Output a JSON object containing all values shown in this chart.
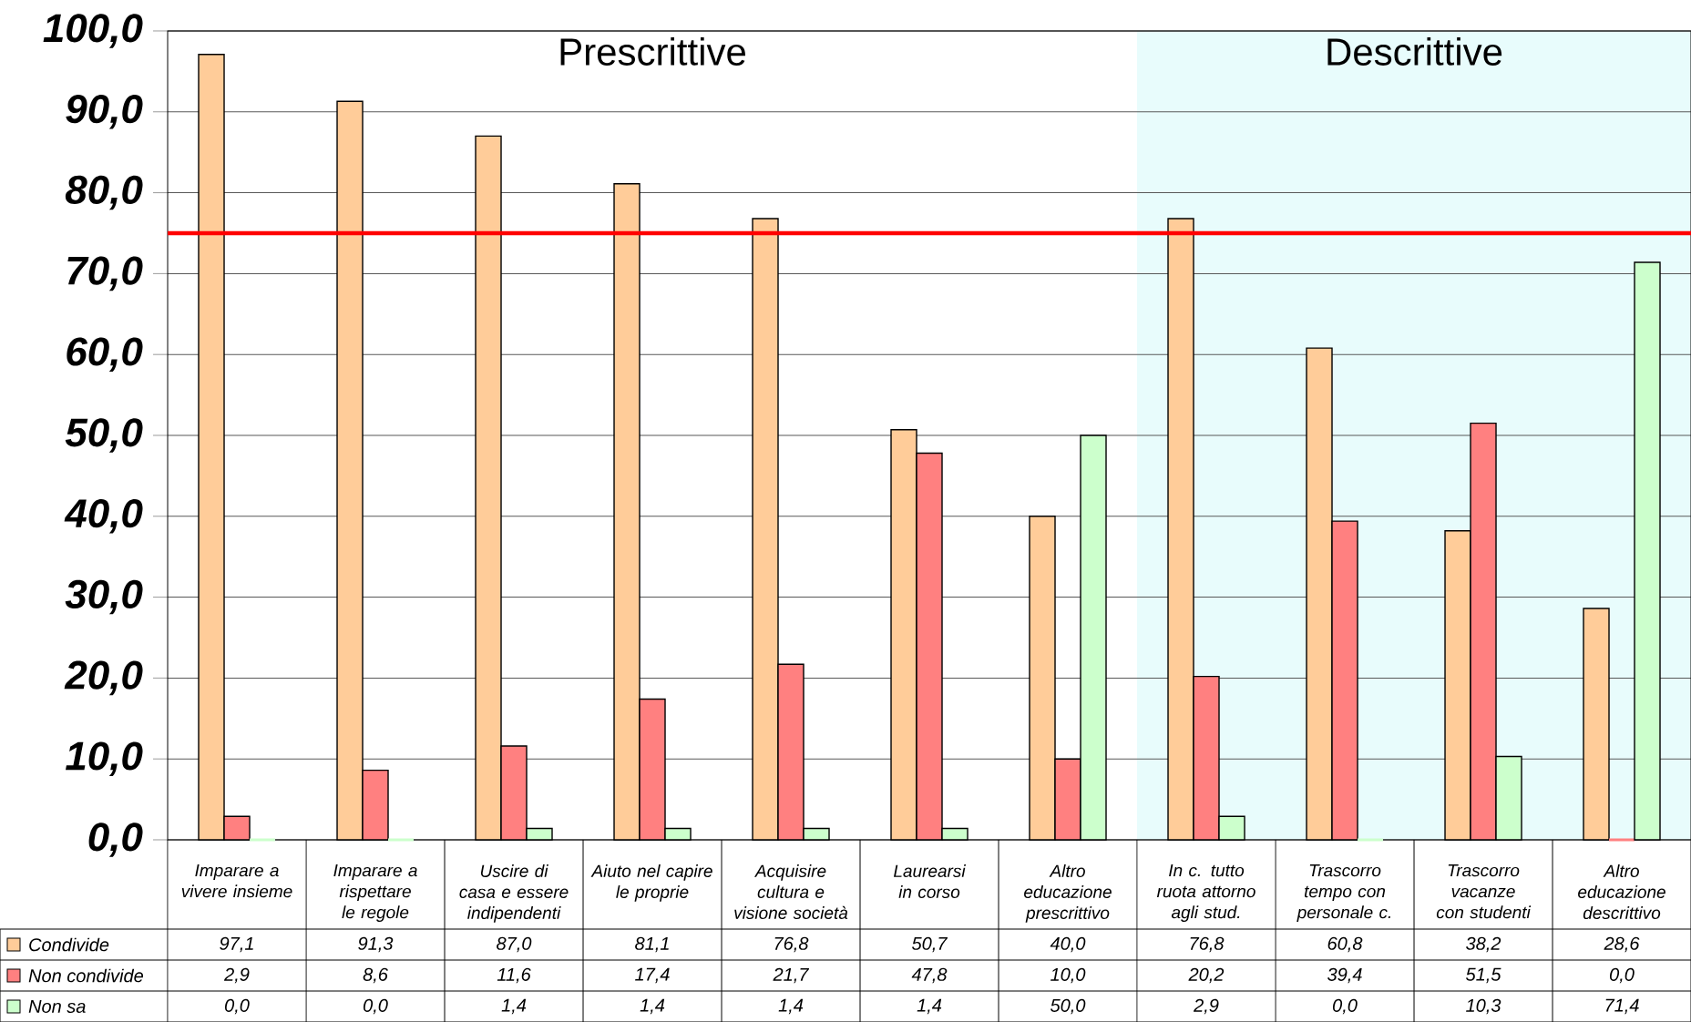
{
  "chart_data": {
    "type": "bar",
    "categories": [
      "Imparare a vivere insieme",
      "Imparare a rispettare le regole",
      "Uscire di casa e essere indipendenti",
      "Aiuto nel capire le proprie",
      "Acquisire cultura e visione società",
      "Laurearsi in corso",
      "Altro educazione prescrittivo",
      "In c. tutto ruota attorno agli stud.",
      "Trascorro tempo con personale c.",
      "Trascorro vacanze con studenti",
      "Altro educazione descrittivo"
    ],
    "series": [
      {
        "name": "Condivide",
        "color": "#ffcc99",
        "values": [
          97.1,
          91.3,
          87.0,
          81.1,
          76.8,
          50.7,
          40.0,
          76.8,
          60.8,
          38.2,
          28.6
        ],
        "value_labels": [
          "97,1",
          "91,3",
          "87,0",
          "81,1",
          "76,8",
          "50,7",
          "40,0",
          "76,8",
          "60,8",
          "38,2",
          "28,6"
        ]
      },
      {
        "name": "Non condivide",
        "color": "#ff8080",
        "values": [
          2.9,
          8.6,
          11.6,
          17.4,
          21.7,
          47.8,
          10.0,
          20.2,
          39.4,
          51.5,
          0.0
        ],
        "value_labels": [
          "2,9",
          "8,6",
          "11,6",
          "17,4",
          "21,7",
          "47,8",
          "10,0",
          "20,2",
          "39,4",
          "51,5",
          "0,0"
        ]
      },
      {
        "name": "Non sa",
        "color": "#ccffcc",
        "values": [
          0.0,
          0.0,
          1.4,
          1.4,
          1.4,
          1.4,
          50.0,
          2.9,
          0.0,
          10.3,
          71.4
        ],
        "value_labels": [
          "0,0",
          "0,0",
          "1,4",
          "1,4",
          "1,4",
          "1,4",
          "50,0",
          "2,9",
          "0,0",
          "10,3",
          "71,4"
        ]
      }
    ],
    "ylim": [
      0,
      100
    ],
    "yticks": [
      {
        "value": 0,
        "label": "0,0"
      },
      {
        "value": 10,
        "label": "10,0"
      },
      {
        "value": 20,
        "label": "20,0"
      },
      {
        "value": 30,
        "label": "30,0"
      },
      {
        "value": 40,
        "label": "40,0"
      },
      {
        "value": 50,
        "label": "50,0"
      },
      {
        "value": 60,
        "label": "60,0"
      },
      {
        "value": 70,
        "label": "70,0"
      },
      {
        "value": 80,
        "label": "80,0"
      },
      {
        "value": 90,
        "label": "90,0"
      },
      {
        "value": 100,
        "label": "100,0"
      }
    ],
    "grid": "y",
    "ref_lines": [
      {
        "axis": "y",
        "value": 75,
        "color": "#ff0000"
      }
    ],
    "bands": [
      {
        "axis": "x",
        "from": "In c. tutto ruota attorno agli stud.",
        "to": "Altro educazione descrittivo",
        "label": "Descrittive",
        "color": "#e8fcfc"
      }
    ],
    "annotations": [
      "Prescrittive"
    ],
    "legend": "bottom"
  }
}
